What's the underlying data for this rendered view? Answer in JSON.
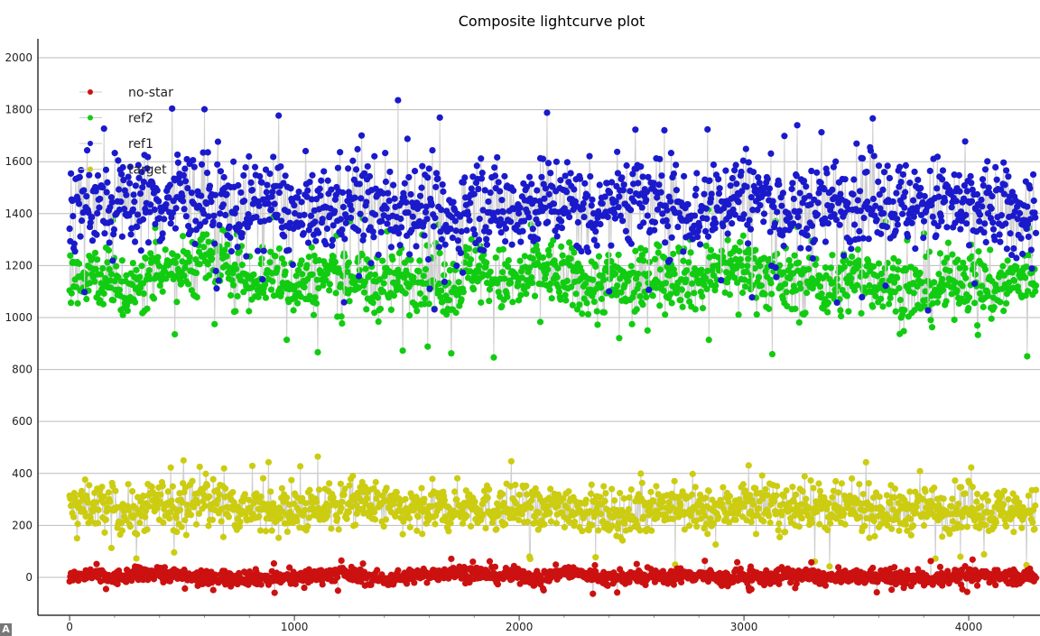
{
  "chart_data": {
    "type": "line",
    "title": "Composite lightcurve plot",
    "xlabel": "",
    "ylabel": "",
    "xlim": [
      -141,
      4317
    ],
    "ylim": [
      -146,
      2073
    ],
    "x_ticks": [
      "0",
      "1000",
      "2000",
      "3000",
      "4000"
    ],
    "y_ticks": [
      "0",
      "200",
      "400",
      "600",
      "800",
      "1000",
      "1200",
      "1400",
      "1600",
      "1800",
      "2000"
    ],
    "grid": "horizontal",
    "legend_position": "top-left",
    "frames": 4300,
    "sample_step": 100,
    "series": [
      {
        "name": "no-star",
        "color": "#cc1111",
        "mean": 0,
        "spread": 18,
        "values": [
          0,
          10,
          -5,
          12,
          20,
          5,
          -8,
          2,
          0,
          -4,
          -3,
          8,
          15,
          6,
          -10,
          3,
          12,
          20,
          18,
          5,
          10,
          -6,
          25,
          8,
          -5,
          2,
          0,
          6,
          12,
          -8,
          4,
          -2,
          10,
          3,
          -5,
          0,
          6,
          -3,
          -8,
          2,
          5,
          9,
          3,
          0
        ]
      },
      {
        "name": "ref2",
        "color": "#11cc11",
        "mean": 1160,
        "spread": 80,
        "values": [
          1150,
          1180,
          1120,
          1100,
          1210,
          1180,
          1230,
          1200,
          1150,
          1170,
          1130,
          1150,
          1180,
          1140,
          1120,
          1160,
          1170,
          1110,
          1200,
          1140,
          1130,
          1190,
          1160,
          1120,
          1150,
          1100,
          1170,
          1180,
          1140,
          1190,
          1200,
          1160,
          1130,
          1150,
          1110,
          1160,
          1150,
          1120,
          1090,
          1130,
          1170,
          1100,
          1140,
          1160
        ]
      },
      {
        "name": "ref1",
        "color": "#1a1acc",
        "mean": 1430,
        "spread": 110,
        "values": [
          1420,
          1450,
          1400,
          1470,
          1430,
          1480,
          1450,
          1430,
          1420,
          1470,
          1380,
          1380,
          1440,
          1460,
          1400,
          1440,
          1420,
          1350,
          1460,
          1420,
          1430,
          1440,
          1460,
          1400,
          1450,
          1470,
          1430,
          1440,
          1400,
          1460,
          1480,
          1450,
          1400,
          1420,
          1440,
          1460,
          1480,
          1430,
          1440,
          1450,
          1400,
          1440,
          1380,
          1420
        ]
      },
      {
        "name": "target",
        "color": "#cccc11",
        "mean": 265,
        "spread": 55,
        "values": [
          270,
          280,
          260,
          250,
          290,
          270,
          300,
          280,
          260,
          270,
          250,
          260,
          280,
          290,
          270,
          250,
          260,
          270,
          280,
          260,
          270,
          250,
          280,
          260,
          250,
          240,
          280,
          270,
          250,
          260,
          290,
          270,
          260,
          280,
          250,
          270,
          260,
          250,
          270,
          260,
          280,
          250,
          260,
          250
        ]
      }
    ]
  },
  "corner_badge": "A"
}
